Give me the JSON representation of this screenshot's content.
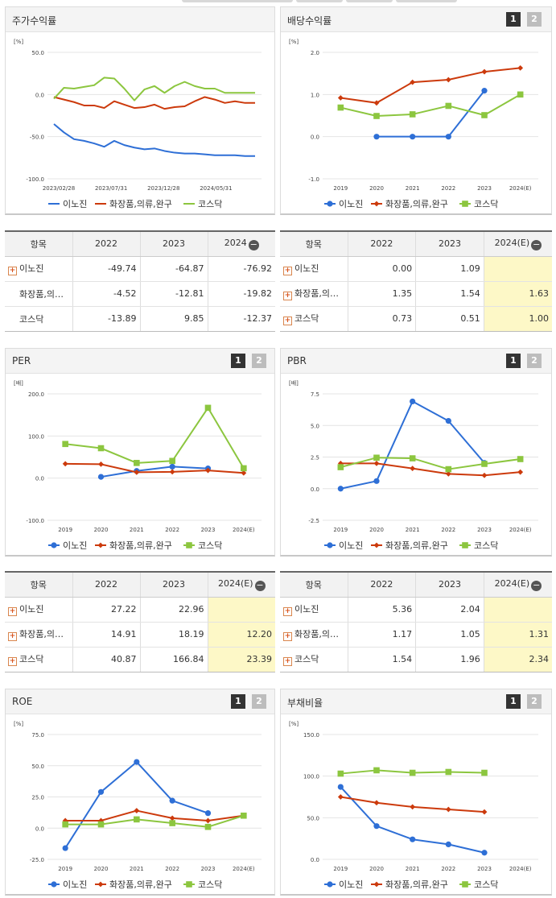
{
  "colors": {
    "inojin": "#2e6fd6",
    "cosmetics": "#cc3a0c",
    "kosdaq": "#8cc63f",
    "estimate_bg": "#fdf8c7",
    "grid": "#e3e3e3"
  },
  "icons": {
    "expand": "plus-box-icon",
    "collapse": "minus-circle-icon"
  },
  "pager": {
    "p1": "1",
    "p2": "2"
  },
  "legend_names": [
    "이노진",
    "화장품,의류,완구",
    "코스닥"
  ],
  "chart_data": [
    {
      "id": "stock",
      "type": "line",
      "title": "주가수익률",
      "unit": "[%]",
      "ylim": [
        -100,
        50
      ],
      "yticks": [
        "50.0",
        "0.0",
        "-50.0",
        "-100.0"
      ],
      "x_labels": [
        "2023/02/28",
        "2023/07/31",
        "2023/12/28",
        "2024/05/31"
      ],
      "x_count": 21,
      "series": [
        {
          "name": "이노진",
          "values": [
            -35,
            -45,
            -53,
            -55,
            -58,
            -62,
            -55,
            -60,
            -63,
            -65,
            -64,
            -67,
            -69,
            -70,
            -70,
            -71,
            -72,
            -72,
            -72,
            -73,
            -73
          ]
        },
        {
          "name": "화장품,의류,완구",
          "values": [
            -3,
            -6,
            -9,
            -13,
            -13,
            -16,
            -8,
            -12,
            -16,
            -15,
            -12,
            -17,
            -15,
            -14,
            -8,
            -3,
            -6,
            -10,
            -8,
            -10,
            -10
          ]
        },
        {
          "name": "코스닥",
          "values": [
            -5,
            8,
            7,
            9,
            11,
            20,
            19,
            7,
            -7,
            6,
            10,
            2,
            10,
            15,
            10,
            7,
            7,
            2,
            2,
            2,
            2
          ]
        }
      ]
    },
    {
      "id": "dividend",
      "type": "line",
      "title": "배당수익률",
      "unit": "[%]",
      "ylim": [
        -1,
        2
      ],
      "yticks": [
        "2.0",
        "1.0",
        "0.0",
        "-1.0"
      ],
      "categories": [
        "2019",
        "2020",
        "2021",
        "2022",
        "2023",
        "2024(E)"
      ],
      "series": [
        {
          "name": "이노진",
          "values": [
            null,
            0.0,
            0.0,
            0.0,
            1.09,
            null
          ]
        },
        {
          "name": "화장품,의류,완구",
          "values": [
            0.92,
            0.8,
            1.29,
            1.35,
            1.54,
            1.63
          ]
        },
        {
          "name": "코스닥",
          "values": [
            0.69,
            0.49,
            0.53,
            0.73,
            0.51,
            1.0
          ]
        }
      ]
    },
    {
      "id": "per",
      "type": "line",
      "title": "PER",
      "unit": "[배]",
      "ylim": [
        -100,
        200
      ],
      "yticks": [
        "200.0",
        "100.0",
        "0.0",
        "-100.0"
      ],
      "categories": [
        "2019",
        "2020",
        "2021",
        "2022",
        "2023",
        "2024(E)"
      ],
      "series": [
        {
          "name": "이노진",
          "values": [
            null,
            3,
            17,
            27.22,
            22.96,
            null
          ]
        },
        {
          "name": "화장품,의류,완구",
          "values": [
            34,
            33,
            14,
            14.91,
            18.19,
            12.2
          ]
        },
        {
          "name": "코스닥",
          "values": [
            81,
            71,
            36,
            40.87,
            166.84,
            23.39
          ]
        }
      ]
    },
    {
      "id": "pbr",
      "type": "line",
      "title": "PBR",
      "unit": "[배]",
      "ylim": [
        -2.5,
        7.5
      ],
      "yticks": [
        "7.5",
        "5.0",
        "2.5",
        "0.0",
        "-2.5"
      ],
      "categories": [
        "2019",
        "2020",
        "2021",
        "2022",
        "2023",
        "2024(E)"
      ],
      "series": [
        {
          "name": "이노진",
          "values": [
            0.0,
            0.6,
            6.9,
            5.36,
            2.04,
            null
          ]
        },
        {
          "name": "화장품,의류,완구",
          "values": [
            2.0,
            2.0,
            1.6,
            1.17,
            1.05,
            1.31
          ]
        },
        {
          "name": "코스닥",
          "values": [
            1.7,
            2.45,
            2.4,
            1.54,
            1.96,
            2.34
          ]
        }
      ]
    },
    {
      "id": "roe",
      "type": "line",
      "title": "ROE",
      "unit": "[%]",
      "ylim": [
        -25,
        75
      ],
      "yticks": [
        "75.0",
        "50.0",
        "25.0",
        "0.0",
        "-25.0"
      ],
      "categories": [
        "2019",
        "2020",
        "2021",
        "2022",
        "2023",
        "2024(E)"
      ],
      "series": [
        {
          "name": "이노진",
          "values": [
            -16,
            29,
            53,
            22,
            12,
            null
          ]
        },
        {
          "name": "화장품,의류,완구",
          "values": [
            6,
            6,
            14,
            8,
            6,
            10
          ]
        },
        {
          "name": "코스닥",
          "values": [
            3,
            3,
            7,
            4,
            1,
            10
          ]
        }
      ]
    },
    {
      "id": "debt",
      "type": "line",
      "title": "부채비율",
      "unit": "[%]",
      "ylim": [
        0,
        150
      ],
      "yticks": [
        "150.0",
        "100.0",
        "50.0",
        "0.0"
      ],
      "categories": [
        "2019",
        "2020",
        "2021",
        "2022",
        "2023",
        "2024(E)"
      ],
      "series": [
        {
          "name": "이노진",
          "values": [
            87,
            40,
            24,
            18,
            8,
            null
          ]
        },
        {
          "name": "화장품,의류,완구",
          "values": [
            75,
            68,
            63,
            60,
            57,
            null
          ]
        },
        {
          "name": "코스닥",
          "values": [
            103,
            107,
            104,
            105,
            104,
            null
          ]
        }
      ]
    }
  ],
  "tables": {
    "stock": {
      "headers": [
        "항목",
        "2022",
        "2023",
        "2024"
      ],
      "rows": [
        {
          "name": "이노진",
          "values": [
            "-49.74",
            "-64.87",
            "-76.92"
          ]
        },
        {
          "name": "화장품,의…",
          "values": [
            "-4.52",
            "-12.81",
            "-19.82"
          ]
        },
        {
          "name": "코스닥",
          "values": [
            "-13.89",
            "9.85",
            "-12.37"
          ]
        }
      ]
    },
    "dividend": {
      "headers": [
        "항목",
        "2022",
        "2023",
        "2024(E)"
      ],
      "rows": [
        {
          "name": "이노진",
          "values": [
            "0.00",
            "1.09",
            ""
          ]
        },
        {
          "name": "화장품,의…",
          "values": [
            "1.35",
            "1.54",
            "1.63"
          ]
        },
        {
          "name": "코스닥",
          "values": [
            "0.73",
            "0.51",
            "1.00"
          ]
        }
      ]
    },
    "per": {
      "headers": [
        "항목",
        "2022",
        "2023",
        "2024(E)"
      ],
      "rows": [
        {
          "name": "이노진",
          "values": [
            "27.22",
            "22.96",
            ""
          ]
        },
        {
          "name": "화장품,의…",
          "values": [
            "14.91",
            "18.19",
            "12.20"
          ]
        },
        {
          "name": "코스닥",
          "values": [
            "40.87",
            "166.84",
            "23.39"
          ]
        }
      ]
    },
    "pbr": {
      "headers": [
        "항목",
        "2022",
        "2023",
        "2024(E)"
      ],
      "rows": [
        {
          "name": "이노진",
          "values": [
            "5.36",
            "2.04",
            ""
          ]
        },
        {
          "name": "화장품,의…",
          "values": [
            "1.17",
            "1.05",
            "1.31"
          ]
        },
        {
          "name": "코스닥",
          "values": [
            "1.54",
            "1.96",
            "2.34"
          ]
        }
      ]
    }
  }
}
